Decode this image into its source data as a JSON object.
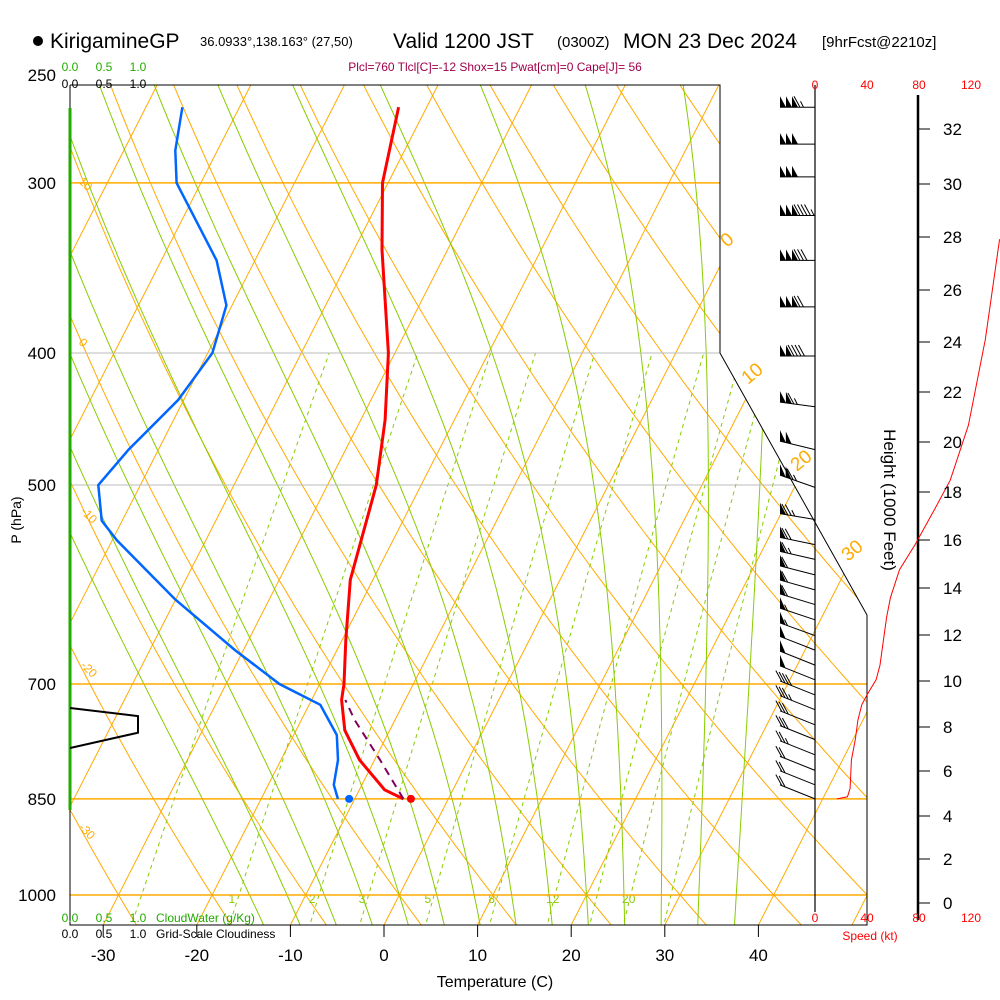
{
  "header": {
    "station": "KirigamineGP",
    "coords": "36.0933°,138.163° (27,50)",
    "valid": "Valid 1200 JST",
    "utc": "(0300Z)",
    "date": "MON 23 Dec 2024",
    "forecast": "[9hrFcst@2210z]",
    "parcel_stats": "Plcl=760 Tlcl[C]=-12 Shox=15 Pwat[cm]=0 Cape[J]= 56"
  },
  "colors": {
    "temperature": "#ff0000",
    "dewpoint": "#0066ff",
    "parcel": "#800060",
    "isotherm": "#ffaa00",
    "moist_adiabat": "#88cc00",
    "cloudwater": "#22aa00",
    "speed": "#ff0000"
  },
  "chart_data": {
    "type": "line",
    "title": "Skew-T log-P sounding",
    "xlabel": "Temperature (C)",
    "ylabel": "P (hPa)",
    "y2label": "Height (1000 Feet)",
    "speed_label": "Speed (kt)",
    "cloudwater_label": "CloudWater (g/Kg)",
    "cloudiness_label": "Grid-Scale Cloudiness",
    "x_ticks": [
      "-30",
      "-20",
      "-10",
      "0",
      "10",
      "20",
      "30",
      "40"
    ],
    "x_tick_values": [
      -30,
      -20,
      -10,
      0,
      10,
      20,
      30,
      40
    ],
    "pressure_ticks": [
      "250",
      "300",
      "400",
      "500",
      "700",
      "850",
      "1000"
    ],
    "pressure_tick_values": [
      250,
      300,
      400,
      500,
      700,
      850,
      1000
    ],
    "height_ticks": [
      "0",
      "2",
      "4",
      "6",
      "8",
      "10",
      "12",
      "14",
      "16",
      "18",
      "20",
      "22",
      "24",
      "26",
      "28",
      "30",
      "32"
    ],
    "speed_ticks": [
      "0",
      "40",
      "80",
      "120"
    ],
    "speed_tick_values": [
      0,
      40,
      80,
      120
    ],
    "cloud_scale_ticks": [
      "0.0",
      "0.5",
      "1.0"
    ],
    "mixing_ratio_labels": [
      "1",
      "2",
      "3",
      "5",
      "8",
      "12",
      "20"
    ],
    "mixing_ratio_values": [
      1,
      2,
      3,
      5,
      8,
      12,
      20
    ],
    "dry_adiabat_left_labels": [
      "10",
      "0",
      "-10",
      "-20",
      "-30"
    ],
    "dry_adiabat_right_labels": [
      "0",
      "10",
      "20",
      "30"
    ],
    "temperature": [
      {
        "p": 264,
        "t": -43.0
      },
      {
        "p": 300,
        "t": -40.6
      },
      {
        "p": 336,
        "t": -37.0
      },
      {
        "p": 400,
        "t": -30.7
      },
      {
        "p": 448,
        "t": -27.4
      },
      {
        "p": 500,
        "t": -24.8
      },
      {
        "p": 587,
        "t": -22.4
      },
      {
        "p": 650,
        "t": -19.6
      },
      {
        "p": 700,
        "t": -17.4
      },
      {
        "p": 719,
        "t": -16.8
      },
      {
        "p": 757,
        "t": -14.8
      },
      {
        "p": 796,
        "t": -11.6
      },
      {
        "p": 837,
        "t": -7.3
      },
      {
        "p": 850,
        "t": -4.8
      }
    ],
    "surface_temperature": {
      "p": 850,
      "t": -4.0
    },
    "dewpoint": [
      {
        "p": 264,
        "t": -66.1
      },
      {
        "p": 284,
        "t": -64.5
      },
      {
        "p": 300,
        "t": -62.6
      },
      {
        "p": 342,
        "t": -54.1
      },
      {
        "p": 369,
        "t": -50.6
      },
      {
        "p": 400,
        "t": -49.5
      },
      {
        "p": 433,
        "t": -50.6
      },
      {
        "p": 471,
        "t": -53.2
      },
      {
        "p": 500,
        "t": -54.5
      },
      {
        "p": 531,
        "t": -52.2
      },
      {
        "p": 549,
        "t": -49.5
      },
      {
        "p": 607,
        "t": -40.0
      },
      {
        "p": 661,
        "t": -30.9
      },
      {
        "p": 700,
        "t": -24.3
      },
      {
        "p": 725,
        "t": -18.8
      },
      {
        "p": 763,
        "t": -15.4
      },
      {
        "p": 796,
        "t": -13.9
      },
      {
        "p": 830,
        "t": -13.0
      },
      {
        "p": 850,
        "t": -11.8
      }
    ],
    "surface_dewpoint": {
      "p": 850,
      "t": -10.6
    },
    "parcel": [
      {
        "p": 850,
        "t": -4.8
      },
      {
        "p": 796,
        "t": -9.4
      },
      {
        "p": 744,
        "t": -14.3
      },
      {
        "p": 719,
        "t": -16.4
      }
    ],
    "wind_speed_kt": [
      {
        "p": 850,
        "s": 17
      },
      {
        "p": 847,
        "s": 25
      },
      {
        "p": 835,
        "s": 27
      },
      {
        "p": 796,
        "s": 28
      },
      {
        "p": 769,
        "s": 31
      },
      {
        "p": 744,
        "s": 33
      },
      {
        "p": 725,
        "s": 36
      },
      {
        "p": 713,
        "s": 40
      },
      {
        "p": 695,
        "s": 47
      },
      {
        "p": 678,
        "s": 50
      },
      {
        "p": 626,
        "s": 55
      },
      {
        "p": 605,
        "s": 58
      },
      {
        "p": 577,
        "s": 65
      },
      {
        "p": 553,
        "s": 77
      },
      {
        "p": 521,
        "s": 92
      },
      {
        "p": 496,
        "s": 104
      },
      {
        "p": 452,
        "s": 118
      },
      {
        "p": 391,
        "s": 131
      },
      {
        "p": 330,
        "s": 142
      }
    ],
    "wind_barbs": [
      {
        "p": 264,
        "s": 165
      },
      {
        "p": 281,
        "s": 150
      },
      {
        "p": 297,
        "s": 150
      },
      {
        "p": 317,
        "s": 195
      },
      {
        "p": 342,
        "s": 180
      },
      {
        "p": 370,
        "s": 170
      },
      {
        "p": 402,
        "s": 140
      },
      {
        "p": 438,
        "s": 115
      },
      {
        "p": 471,
        "s": 100
      },
      {
        "p": 502,
        "s": 115
      },
      {
        "p": 530,
        "s": 75
      },
      {
        "p": 553,
        "s": 70
      },
      {
        "p": 567,
        "s": 65
      },
      {
        "p": 582,
        "s": 60
      },
      {
        "p": 597,
        "s": 60
      },
      {
        "p": 612,
        "s": 58
      },
      {
        "p": 628,
        "s": 55
      },
      {
        "p": 645,
        "s": 55
      },
      {
        "p": 661,
        "s": 52
      },
      {
        "p": 678,
        "s": 50
      },
      {
        "p": 695,
        "s": 48
      },
      {
        "p": 713,
        "s": 40
      },
      {
        "p": 731,
        "s": 35
      },
      {
        "p": 750,
        "s": 30
      },
      {
        "p": 769,
        "s": 28
      },
      {
        "p": 789,
        "s": 25
      },
      {
        "p": 810,
        "s": 22
      },
      {
        "p": 830,
        "s": 20
      },
      {
        "p": 850,
        "s": 18
      }
    ],
    "cloudiness": [
      {
        "p": 729,
        "c": 0.0
      },
      {
        "p": 739,
        "c": 1.0
      },
      {
        "p": 760,
        "c": 1.0
      },
      {
        "p": 780,
        "c": 0.0
      }
    ],
    "grid": true
  }
}
